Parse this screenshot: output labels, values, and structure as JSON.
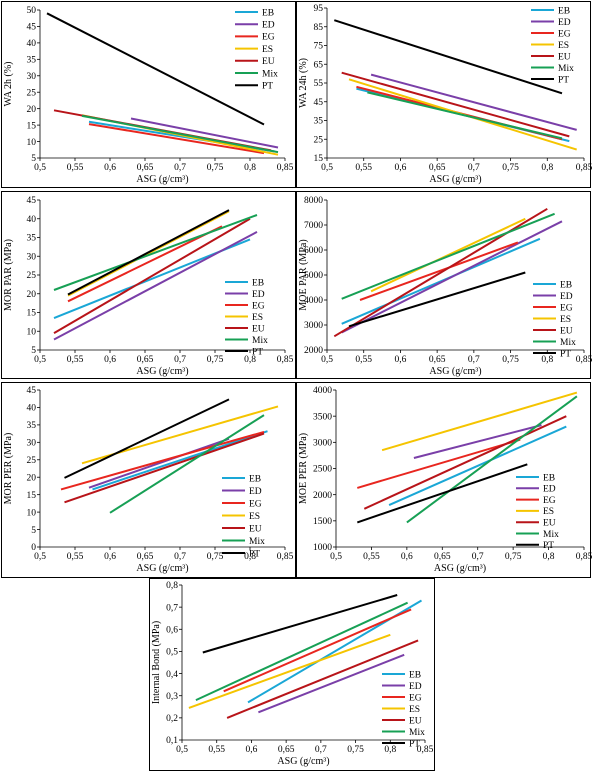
{
  "colors": {
    "EB": "#1aa7d6",
    "ED": "#7a3fa8",
    "EG": "#e8261f",
    "ES": "#f5c400",
    "EU": "#b81419",
    "Mix": "#17a055",
    "PT": "#000000"
  },
  "chart_data": [
    {
      "type": "line",
      "panel": "top-left",
      "xlabel": "ASG (g/cm³)",
      "ylabel": "WA 2h (%)",
      "xlim": [
        0.5,
        0.85
      ],
      "ylim": [
        5,
        50
      ],
      "xticks": [
        "0,5",
        "0,55",
        "0,6",
        "0,65",
        "0,7",
        "0,75",
        "0,8",
        "0,85"
      ],
      "yticks": [
        "5",
        "10",
        "15",
        "20",
        "25",
        "30",
        "35",
        "40",
        "45",
        "50"
      ],
      "legend": "right",
      "series": [
        {
          "name": "EB",
          "x": [
            0.57,
            0.835
          ],
          "y": [
            16.0,
            7.0
          ]
        },
        {
          "name": "ED",
          "x": [
            0.63,
            0.84
          ],
          "y": [
            17.0,
            8.2
          ]
        },
        {
          "name": "EG",
          "x": [
            0.57,
            0.82
          ],
          "y": [
            15.3,
            6.5
          ]
        },
        {
          "name": "ES",
          "x": [
            0.56,
            0.84
          ],
          "y": [
            18.0,
            6.0
          ]
        },
        {
          "name": "EU",
          "x": [
            0.52,
            0.83
          ],
          "y": [
            19.5,
            7.3
          ]
        },
        {
          "name": "Mix",
          "x": [
            0.56,
            0.84
          ],
          "y": [
            17.8,
            6.8
          ]
        },
        {
          "name": "PT",
          "x": [
            0.51,
            0.82
          ],
          "y": [
            49.0,
            15.2
          ]
        }
      ]
    },
    {
      "type": "line",
      "panel": "top-right",
      "xlabel": "ASG (g/cm³)",
      "ylabel": "WA 24h (%)",
      "xlim": [
        0.5,
        0.85
      ],
      "ylim": [
        15,
        95
      ],
      "xticks": [
        "0,5",
        "0,55",
        "0,6",
        "0,65",
        "0,7",
        "0,75",
        "0,8",
        "0,85"
      ],
      "yticks": [
        "15",
        "25",
        "35",
        "45",
        "55",
        "65",
        "75",
        "85",
        "95"
      ],
      "legend": "right",
      "series": [
        {
          "name": "EB",
          "x": [
            0.54,
            0.83
          ],
          "y": [
            52.0,
            24.0
          ]
        },
        {
          "name": "ED",
          "x": [
            0.56,
            0.84
          ],
          "y": [
            59.5,
            30.0
          ]
        },
        {
          "name": "EG",
          "x": [
            0.54,
            0.82
          ],
          "y": [
            53.0,
            25.0
          ]
        },
        {
          "name": "ES",
          "x": [
            0.53,
            0.84
          ],
          "y": [
            57.0,
            19.5
          ]
        },
        {
          "name": "EU",
          "x": [
            0.52,
            0.83
          ],
          "y": [
            60.5,
            26.5
          ]
        },
        {
          "name": "Mix",
          "x": [
            0.555,
            0.82
          ],
          "y": [
            50.0,
            25.5
          ]
        },
        {
          "name": "PT",
          "x": [
            0.51,
            0.82
          ],
          "y": [
            88.5,
            49.5
          ]
        }
      ]
    },
    {
      "type": "line",
      "panel": "mid1-left",
      "xlabel": "ASG (g/cm³)",
      "ylabel": "MOR PAR (MPa)",
      "xlim": [
        0.5,
        0.85
      ],
      "ylim": [
        5,
        45
      ],
      "xticks": [
        "0,5",
        "0,55",
        "0,6",
        "0,65",
        "0,7",
        "0,75",
        "0,8",
        "0,85"
      ],
      "yticks": [
        "5",
        "10",
        "15",
        "20",
        "25",
        "30",
        "35",
        "40",
        "45"
      ],
      "legend": "bottom-right",
      "series": [
        {
          "name": "EB",
          "x": [
            0.52,
            0.8
          ],
          "y": [
            13.5,
            34.5
          ]
        },
        {
          "name": "ED",
          "x": [
            0.52,
            0.81
          ],
          "y": [
            7.8,
            36.5
          ]
        },
        {
          "name": "EG",
          "x": [
            0.54,
            0.76
          ],
          "y": [
            18.0,
            38.0
          ]
        },
        {
          "name": "ES",
          "x": [
            0.54,
            0.77
          ],
          "y": [
            19.5,
            42.0
          ]
        },
        {
          "name": "EU",
          "x": [
            0.52,
            0.8
          ],
          "y": [
            9.5,
            40.0
          ]
        },
        {
          "name": "Mix",
          "x": [
            0.52,
            0.81
          ],
          "y": [
            21.0,
            41.0
          ]
        },
        {
          "name": "PT",
          "x": [
            0.54,
            0.77
          ],
          "y": [
            19.8,
            42.3
          ]
        }
      ]
    },
    {
      "type": "line",
      "panel": "mid1-right",
      "xlabel": "ASG (g/cm³)",
      "ylabel": "MOE PAR (MPa)",
      "xlim": [
        0.5,
        0.85
      ],
      "ylim": [
        2000,
        8000
      ],
      "xticks": [
        "0,5",
        "0,55",
        "0,6",
        "0,65",
        "0,7",
        "0,75",
        "0,8",
        "0,85"
      ],
      "yticks": [
        "2000",
        "3000",
        "4000",
        "5000",
        "6000",
        "7000",
        "8000"
      ],
      "legend": "bottom-right",
      "series": [
        {
          "name": "EB",
          "x": [
            0.52,
            0.79
          ],
          "y": [
            3050,
            6450
          ]
        },
        {
          "name": "ED",
          "x": [
            0.52,
            0.82
          ],
          "y": [
            2700,
            7150
          ]
        },
        {
          "name": "EG",
          "x": [
            0.545,
            0.76
          ],
          "y": [
            4000,
            6300
          ]
        },
        {
          "name": "ES",
          "x": [
            0.56,
            0.77
          ],
          "y": [
            4350,
            7250
          ]
        },
        {
          "name": "EU",
          "x": [
            0.51,
            0.8
          ],
          "y": [
            2550,
            7650
          ]
        },
        {
          "name": "Mix",
          "x": [
            0.52,
            0.81
          ],
          "y": [
            4050,
            7450
          ]
        },
        {
          "name": "PT",
          "x": [
            0.53,
            0.77
          ],
          "y": [
            2950,
            5100
          ]
        }
      ]
    },
    {
      "type": "line",
      "panel": "mid2-left",
      "xlabel": "ASG (g/cm³)",
      "ylabel": "MOR PER (MPa)",
      "xlim": [
        0.5,
        0.85
      ],
      "ylim": [
        0,
        45
      ],
      "xticks": [
        "0,5",
        "0,55",
        "0,6",
        "0,65",
        "0,7",
        "0,75",
        "0,8",
        "0,85"
      ],
      "yticks": [
        "0",
        "5",
        "10",
        "15",
        "20",
        "25",
        "30",
        "35",
        "40",
        "45"
      ],
      "legend": "bottom-right",
      "series": [
        {
          "name": "EB",
          "x": [
            0.575,
            0.825
          ],
          "y": [
            16.5,
            33.2
          ]
        },
        {
          "name": "ED",
          "x": [
            0.57,
            0.77
          ],
          "y": [
            17.0,
            31.0
          ]
        },
        {
          "name": "EG",
          "x": [
            0.53,
            0.82
          ],
          "y": [
            16.5,
            33.0
          ]
        },
        {
          "name": "ES",
          "x": [
            0.56,
            0.84
          ],
          "y": [
            24.0,
            40.3
          ]
        },
        {
          "name": "EU",
          "x": [
            0.535,
            0.82
          ],
          "y": [
            12.8,
            32.5
          ]
        },
        {
          "name": "Mix",
          "x": [
            0.6,
            0.82
          ],
          "y": [
            9.8,
            37.8
          ]
        },
        {
          "name": "PT",
          "x": [
            0.535,
            0.77
          ],
          "y": [
            19.8,
            42.3
          ]
        }
      ]
    },
    {
      "type": "line",
      "panel": "mid2-right",
      "xlabel": "ASG (g/cm³)",
      "ylabel": "MOE PER (MPa)",
      "xlim": [
        0.5,
        0.85
      ],
      "ylim": [
        1000,
        4000
      ],
      "xticks": [
        "0,5",
        "0,55",
        "0,6",
        "0,65",
        "0,7",
        "0,75",
        "0,8",
        "0,85"
      ],
      "yticks": [
        "1000",
        "1500",
        "2000",
        "2500",
        "3000",
        "3500",
        "4000"
      ],
      "legend": "bottom-right",
      "series": [
        {
          "name": "EB",
          "x": [
            0.575,
            0.825
          ],
          "y": [
            1800,
            3300
          ]
        },
        {
          "name": "ED",
          "x": [
            0.61,
            0.79
          ],
          "y": [
            2700,
            3330
          ]
        },
        {
          "name": "EG",
          "x": [
            0.53,
            0.76
          ],
          "y": [
            2130,
            3050
          ]
        },
        {
          "name": "ES",
          "x": [
            0.565,
            0.84
          ],
          "y": [
            2850,
            3950
          ]
        },
        {
          "name": "EU",
          "x": [
            0.54,
            0.825
          ],
          "y": [
            1730,
            3500
          ]
        },
        {
          "name": "Mix",
          "x": [
            0.6,
            0.84
          ],
          "y": [
            1470,
            3880
          ]
        },
        {
          "name": "PT",
          "x": [
            0.53,
            0.77
          ],
          "y": [
            1470,
            2580
          ]
        }
      ]
    },
    {
      "type": "line",
      "panel": "bottom",
      "xlabel": "ASG (g/cm³)",
      "ylabel": "Internal Bond (MPa)",
      "xlim": [
        0.5,
        0.85
      ],
      "ylim": [
        0.1,
        0.8
      ],
      "xticks": [
        "0,5",
        "0,55",
        "0,6",
        "0,65",
        "0,7",
        "0,75",
        "0,8",
        "0,85"
      ],
      "yticks": [
        "0,1",
        "0,2",
        "0,3",
        "0,4",
        "0,5",
        "0,6",
        "0,7",
        "0,8"
      ],
      "legend": "bottom-right",
      "series": [
        {
          "name": "EB",
          "x": [
            0.595,
            0.845
          ],
          "y": [
            0.27,
            0.73
          ]
        },
        {
          "name": "ED",
          "x": [
            0.61,
            0.82
          ],
          "y": [
            0.225,
            0.485
          ]
        },
        {
          "name": "EG",
          "x": [
            0.56,
            0.83
          ],
          "y": [
            0.32,
            0.69
          ]
        },
        {
          "name": "ES",
          "x": [
            0.51,
            0.8
          ],
          "y": [
            0.245,
            0.575
          ]
        },
        {
          "name": "EU",
          "x": [
            0.565,
            0.84
          ],
          "y": [
            0.2,
            0.55
          ]
        },
        {
          "name": "Mix",
          "x": [
            0.52,
            0.825
          ],
          "y": [
            0.28,
            0.72
          ]
        },
        {
          "name": "PT",
          "x": [
            0.53,
            0.81
          ],
          "y": [
            0.495,
            0.755
          ]
        }
      ]
    }
  ]
}
